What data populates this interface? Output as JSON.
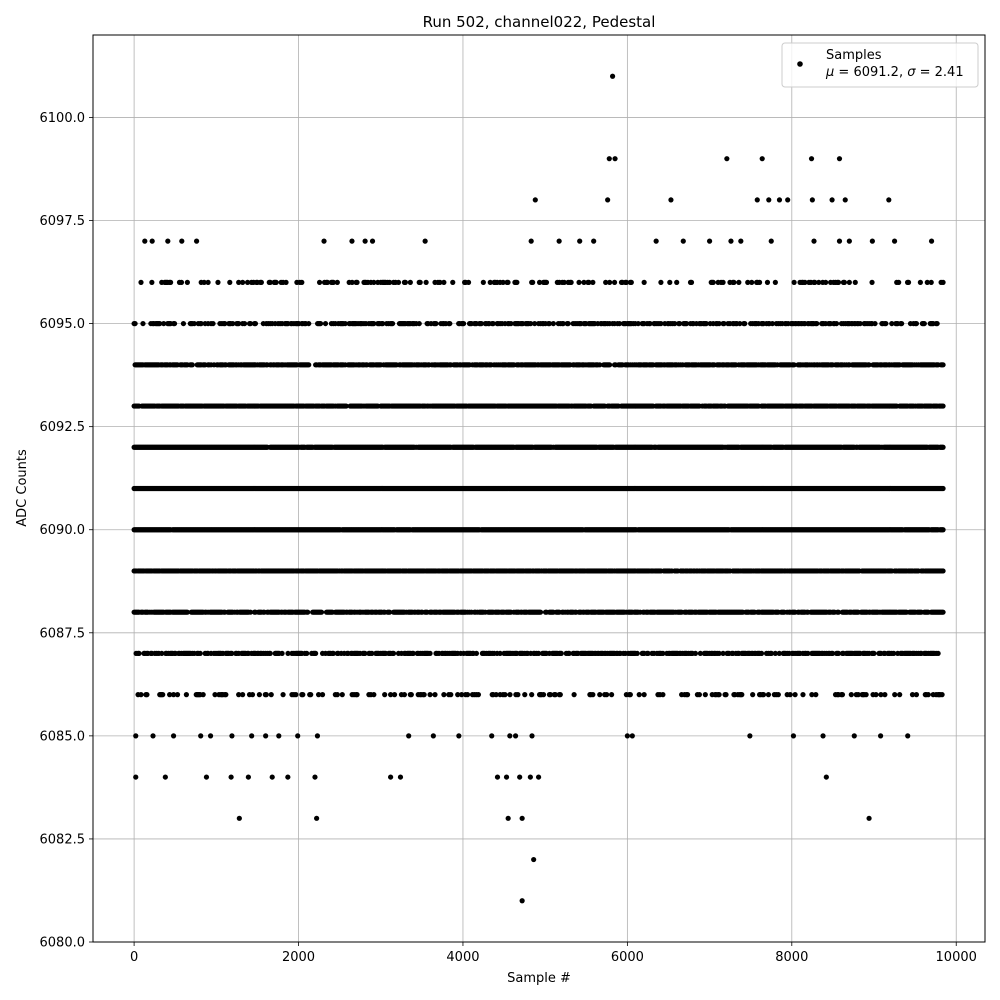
{
  "chart_data": {
    "type": "scatter",
    "title": "Run 502, channel022, Pedestal",
    "xlabel": "Sample #",
    "ylabel": "ADC Counts",
    "xlim": [
      -500,
      10350
    ],
    "ylim": [
      6080,
      6102
    ],
    "xticks": [
      0,
      2000,
      4000,
      6000,
      8000,
      10000
    ],
    "yticks": [
      6080.0,
      6082.5,
      6085.0,
      6087.5,
      6090.0,
      6092.5,
      6095.0,
      6097.5,
      6100.0
    ],
    "xtick_labels": [
      "0",
      "2000",
      "4000",
      "6000",
      "8000",
      "10000"
    ],
    "ytick_labels": [
      "6080.0",
      "6082.5",
      "6085.0",
      "6087.5",
      "6090.0",
      "6092.5",
      "6095.0",
      "6097.5",
      "6100.0"
    ],
    "grid": true,
    "marker_color": "#000000",
    "legend": {
      "position": "top-right",
      "series_name": "Samples",
      "stats": {
        "mu": "6091.2",
        "sigma": "2.41"
      }
    },
    "series": [
      {
        "name": "Samples",
        "points": [
          [
            5820,
            6101
          ],
          [
            5780,
            6099
          ],
          [
            5850,
            6099
          ],
          [
            7210,
            6099
          ],
          [
            7640,
            6099
          ],
          [
            8240,
            6099
          ],
          [
            8580,
            6099
          ],
          [
            4880,
            6098
          ],
          [
            5760,
            6098
          ],
          [
            6530,
            6098
          ],
          [
            7580,
            6098
          ],
          [
            7720,
            6098
          ],
          [
            7850,
            6098
          ],
          [
            7950,
            6098
          ],
          [
            8250,
            6098
          ],
          [
            8490,
            6098
          ],
          [
            8650,
            6098
          ],
          [
            9180,
            6098
          ],
          [
            130,
            6097
          ],
          [
            220,
            6097
          ],
          [
            410,
            6097
          ],
          [
            580,
            6097
          ],
          [
            760,
            6097
          ],
          [
            2310,
            6097
          ],
          [
            2650,
            6097
          ],
          [
            2810,
            6097
          ],
          [
            2900,
            6097
          ],
          [
            3540,
            6097
          ],
          [
            4830,
            6097
          ],
          [
            5170,
            6097
          ],
          [
            5420,
            6097
          ],
          [
            5590,
            6097
          ],
          [
            6350,
            6097
          ],
          [
            6680,
            6097
          ],
          [
            7000,
            6097
          ],
          [
            7260,
            6097
          ],
          [
            7380,
            6097
          ],
          [
            7750,
            6097
          ],
          [
            8270,
            6097
          ],
          [
            8580,
            6097
          ],
          [
            8700,
            6097
          ],
          [
            8980,
            6097
          ],
          [
            9250,
            6097
          ],
          [
            9700,
            6097
          ],
          [
            20,
            6084
          ],
          [
            380,
            6084
          ],
          [
            880,
            6084
          ],
          [
            1180,
            6084
          ],
          [
            1390,
            6084
          ],
          [
            1680,
            6084
          ],
          [
            1870,
            6084
          ],
          [
            2200,
            6084
          ],
          [
            3120,
            6084
          ],
          [
            3240,
            6084
          ],
          [
            4420,
            6084
          ],
          [
            4530,
            6084
          ],
          [
            4690,
            6084
          ],
          [
            4820,
            6084
          ],
          [
            4920,
            6084
          ],
          [
            8420,
            6084
          ],
          [
            1280,
            6083
          ],
          [
            2220,
            6083
          ],
          [
            4550,
            6083
          ],
          [
            4720,
            6083
          ],
          [
            8940,
            6083
          ],
          [
            4860,
            6082
          ],
          [
            4720,
            6081
          ],
          [
            20,
            6085
          ],
          [
            230,
            6085
          ],
          [
            480,
            6085
          ],
          [
            810,
            6085
          ],
          [
            930,
            6085
          ],
          [
            1190,
            6085
          ],
          [
            1430,
            6085
          ],
          [
            1600,
            6085
          ],
          [
            1760,
            6085
          ],
          [
            1990,
            6085
          ],
          [
            2230,
            6085
          ],
          [
            3340,
            6085
          ],
          [
            3640,
            6085
          ],
          [
            3950,
            6085
          ],
          [
            4350,
            6085
          ],
          [
            4570,
            6085
          ],
          [
            4640,
            6085
          ],
          [
            4840,
            6085
          ],
          [
            6000,
            6085
          ],
          [
            6060,
            6085
          ],
          [
            7490,
            6085
          ],
          [
            8020,
            6085
          ],
          [
            8380,
            6085
          ],
          [
            8760,
            6085
          ],
          [
            9080,
            6085
          ],
          [
            9410,
            6085
          ]
        ]
      }
    ],
    "bands": [
      {
        "y": 6096,
        "density": 0.22,
        "gaps": []
      },
      {
        "y": 6095,
        "density": 0.45,
        "gaps": []
      },
      {
        "y": 6094,
        "density": 0.78,
        "gaps": []
      },
      {
        "y": 6093,
        "density": 0.88,
        "gaps": []
      },
      {
        "y": 6092,
        "density": 0.97,
        "gaps": []
      },
      {
        "y": 6091,
        "density": 1.0,
        "gaps": []
      },
      {
        "y": 6090,
        "density": 0.98,
        "gaps": []
      },
      {
        "y": 6089,
        "density": 0.88,
        "gaps": []
      },
      {
        "y": 6088,
        "density": 0.78,
        "gaps": []
      },
      {
        "y": 6087,
        "density": 0.55,
        "gaps": []
      },
      {
        "y": 6086,
        "density": 0.22,
        "gaps": []
      }
    ],
    "x_range_samples": [
      0,
      9850
    ]
  }
}
